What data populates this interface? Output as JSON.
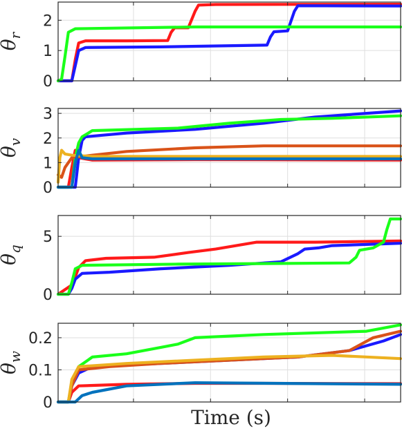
{
  "chart_data": [
    {
      "type": "line",
      "ylabel": "θ",
      "ylabel_sub": "r",
      "xlim": [
        0,
        100
      ],
      "ylim": [
        0,
        2.6
      ],
      "yticks": [
        0,
        1,
        2
      ],
      "xticks": [
        22,
        44.5,
        67,
        89.5
      ],
      "grid": true,
      "series": [
        {
          "color": "#ff1a1a",
          "points": [
            [
              0,
              0
            ],
            [
              4,
              0
            ],
            [
              5,
              0.7
            ],
            [
              6,
              1.25
            ],
            [
              8,
              1.32
            ],
            [
              20,
              1.32
            ],
            [
              32,
              1.33
            ],
            [
              33,
              1.6
            ],
            [
              34,
              1.75
            ],
            [
              38,
              1.75
            ],
            [
              40,
              2.3
            ],
            [
              41,
              2.5
            ],
            [
              46,
              2.52
            ],
            [
              100,
              2.53
            ]
          ]
        },
        {
          "color": "#1a1aff",
          "points": [
            [
              0,
              0
            ],
            [
              4,
              0
            ],
            [
              5,
              0.5
            ],
            [
              6,
              1.0
            ],
            [
              8,
              1.1
            ],
            [
              30,
              1.12
            ],
            [
              61,
              1.18
            ],
            [
              62,
              1.45
            ],
            [
              63,
              1.62
            ],
            [
              67,
              1.65
            ],
            [
              69,
              2.3
            ],
            [
              70,
              2.48
            ],
            [
              100,
              2.47
            ]
          ]
        },
        {
          "color": "#1aff1a",
          "points": [
            [
              0,
              0
            ],
            [
              1,
              0.05
            ],
            [
              2,
              0.8
            ],
            [
              3,
              1.6
            ],
            [
              5,
              1.72
            ],
            [
              40,
              1.78
            ],
            [
              100,
              1.78
            ]
          ]
        }
      ]
    },
    {
      "type": "line",
      "ylabel": "θ",
      "ylabel_sub": "v",
      "xlim": [
        0,
        100
      ],
      "ylim": [
        0,
        3.2
      ],
      "yticks": [
        0,
        1,
        2,
        3
      ],
      "xticks": [
        22,
        44.5,
        67,
        89.5
      ],
      "grid": true,
      "series": [
        {
          "color": "#ff1a1a",
          "points": [
            [
              0,
              0
            ],
            [
              3,
              0
            ],
            [
              4,
              0.8
            ],
            [
              5,
              1.5
            ],
            [
              6,
              1.2
            ],
            [
              10,
              1.1
            ],
            [
              40,
              1.12
            ],
            [
              100,
              1.1
            ]
          ]
        },
        {
          "color": "#1a1aff",
          "points": [
            [
              0,
              0
            ],
            [
              5,
              0
            ],
            [
              6,
              1.2
            ],
            [
              7,
              1.9
            ],
            [
              8,
              2.05
            ],
            [
              20,
              2.2
            ],
            [
              40,
              2.35
            ],
            [
              60,
              2.6
            ],
            [
              75,
              2.85
            ],
            [
              90,
              3.0
            ],
            [
              100,
              3.1
            ]
          ]
        },
        {
          "color": "#1aff1a",
          "points": [
            [
              0,
              0
            ],
            [
              4,
              0
            ],
            [
              5,
              1.2
            ],
            [
              6,
              1.8
            ],
            [
              7,
              2.05
            ],
            [
              10,
              2.3
            ],
            [
              35,
              2.4
            ],
            [
              50,
              2.6
            ],
            [
              65,
              2.75
            ],
            [
              80,
              2.8
            ],
            [
              100,
              2.9
            ]
          ]
        },
        {
          "color": "#d95319",
          "points": [
            [
              0,
              0.5
            ],
            [
              1,
              0.4
            ],
            [
              2,
              0.8
            ],
            [
              4,
              1.2
            ],
            [
              10,
              1.3
            ],
            [
              20,
              1.45
            ],
            [
              40,
              1.6
            ],
            [
              60,
              1.68
            ],
            [
              100,
              1.68
            ]
          ]
        },
        {
          "color": "#edb120",
          "points": [
            [
              0,
              0.2
            ],
            [
              0.5,
              1.2
            ],
            [
              1,
              1.5
            ],
            [
              2,
              1.35
            ],
            [
              4,
              1.3
            ],
            [
              10,
              1.25
            ],
            [
              100,
              1.25
            ]
          ]
        },
        {
          "color": "#0072bd",
          "points": [
            [
              0,
              0
            ],
            [
              4,
              0
            ],
            [
              5,
              1.0
            ],
            [
              6,
              1.5
            ],
            [
              7,
              1.2
            ],
            [
              10,
              1.15
            ],
            [
              100,
              1.15
            ]
          ]
        }
      ]
    },
    {
      "type": "line",
      "ylabel": "θ",
      "ylabel_sub": "q",
      "xlim": [
        0,
        100
      ],
      "ylim": [
        0,
        6.8
      ],
      "yticks": [
        0,
        5
      ],
      "xticks": [
        22,
        44.5,
        67,
        89.5
      ],
      "grid": true,
      "series": [
        {
          "color": "#ff1a1a",
          "points": [
            [
              0,
              0
            ],
            [
              1,
              0.2
            ],
            [
              4,
              0.8
            ],
            [
              5,
              1.5
            ],
            [
              6,
              2.3
            ],
            [
              8,
              2.9
            ],
            [
              14,
              3.1
            ],
            [
              28,
              3.2
            ],
            [
              38,
              3.6
            ],
            [
              46,
              3.9
            ],
            [
              52,
              4.2
            ],
            [
              58,
              4.5
            ],
            [
              75,
              4.5
            ],
            [
              88,
              4.55
            ],
            [
              100,
              4.6
            ]
          ]
        },
        {
          "color": "#1a1aff",
          "points": [
            [
              0,
              0
            ],
            [
              3,
              0
            ],
            [
              4,
              0.5
            ],
            [
              5,
              1.3
            ],
            [
              7,
              1.8
            ],
            [
              15,
              1.9
            ],
            [
              30,
              2.2
            ],
            [
              50,
              2.5
            ],
            [
              65,
              2.8
            ],
            [
              70,
              3.5
            ],
            [
              72,
              3.9
            ],
            [
              76,
              4.0
            ],
            [
              80,
              4.2
            ],
            [
              100,
              4.4
            ]
          ]
        },
        {
          "color": "#1aff1a",
          "points": [
            [
              0,
              0
            ],
            [
              3,
              0
            ],
            [
              4,
              1.0
            ],
            [
              5,
              2.2
            ],
            [
              7,
              2.5
            ],
            [
              35,
              2.6
            ],
            [
              60,
              2.65
            ],
            [
              85,
              2.7
            ],
            [
              87,
              3.2
            ],
            [
              88,
              3.8
            ],
            [
              92,
              4.0
            ],
            [
              95,
              4.5
            ],
            [
              96,
              5.6
            ],
            [
              97,
              6.5
            ],
            [
              100,
              6.5
            ]
          ]
        }
      ]
    },
    {
      "type": "line",
      "ylabel": "θ",
      "ylabel_sub": "w",
      "xlim": [
        0,
        100
      ],
      "ylim": [
        0,
        0.245
      ],
      "yticks": [
        0,
        0.1,
        0.2
      ],
      "xticks": [
        22,
        44.5,
        67,
        89.5
      ],
      "grid": true,
      "series": [
        {
          "color": "#ff1a1a",
          "points": [
            [
              0,
              0
            ],
            [
              3,
              0
            ],
            [
              4,
              0.03
            ],
            [
              6,
              0.05
            ],
            [
              20,
              0.055
            ],
            [
              40,
              0.058
            ],
            [
              60,
              0.058
            ],
            [
              100,
              0.057
            ]
          ]
        },
        {
          "color": "#1a1aff",
          "points": [
            [
              0,
              0
            ],
            [
              3,
              0
            ],
            [
              4,
              0.05
            ],
            [
              6,
              0.09
            ],
            [
              10,
              0.11
            ],
            [
              30,
              0.12
            ],
            [
              50,
              0.13
            ],
            [
              70,
              0.14
            ],
            [
              85,
              0.16
            ],
            [
              95,
              0.19
            ],
            [
              100,
              0.21
            ]
          ]
        },
        {
          "color": "#1aff1a",
          "points": [
            [
              0,
              0
            ],
            [
              3,
              0
            ],
            [
              4,
              0.06
            ],
            [
              6,
              0.11
            ],
            [
              10,
              0.14
            ],
            [
              20,
              0.15
            ],
            [
              30,
              0.17
            ],
            [
              35,
              0.18
            ],
            [
              40,
              0.2
            ],
            [
              60,
              0.21
            ],
            [
              90,
              0.22
            ],
            [
              100,
              0.24
            ]
          ]
        },
        {
          "color": "#d95319",
          "points": [
            [
              0,
              0
            ],
            [
              3,
              0
            ],
            [
              4,
              0.05
            ],
            [
              6,
              0.1
            ],
            [
              15,
              0.11
            ],
            [
              30,
              0.12
            ],
            [
              50,
              0.13
            ],
            [
              70,
              0.14
            ],
            [
              85,
              0.16
            ],
            [
              92,
              0.2
            ],
            [
              100,
              0.22
            ]
          ]
        },
        {
          "color": "#edb120",
          "points": [
            [
              0,
              0
            ],
            [
              3,
              0
            ],
            [
              4,
              0.07
            ],
            [
              6,
              0.11
            ],
            [
              20,
              0.12
            ],
            [
              40,
              0.13
            ],
            [
              60,
              0.14
            ],
            [
              80,
              0.145
            ],
            [
              100,
              0.135
            ]
          ]
        },
        {
          "color": "#0072bd",
          "points": [
            [
              0,
              0
            ],
            [
              5,
              0
            ],
            [
              7,
              0.02
            ],
            [
              10,
              0.03
            ],
            [
              20,
              0.05
            ],
            [
              40,
              0.06
            ],
            [
              100,
              0.055
            ]
          ]
        }
      ]
    }
  ],
  "xlabel": "Time (s)"
}
